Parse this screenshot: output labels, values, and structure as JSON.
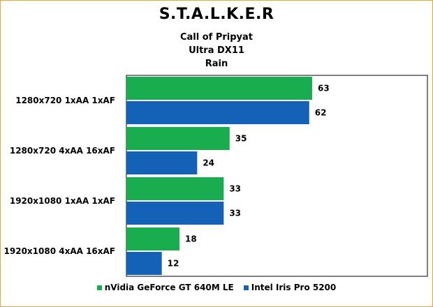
{
  "chart_data": {
    "type": "bar",
    "orientation": "horizontal",
    "title": "S.T.A.L.K.E.R",
    "subtitles": [
      "Call of Pripyat",
      "Ultra DX11",
      "Rain"
    ],
    "categories": [
      "1280x720 1xAA 1xAF",
      "1280x720 4xAA 16xAF",
      "1920x1080 1xAA 1xAF",
      "1920x1080 4xAA 16xAF"
    ],
    "series": [
      {
        "name": "nVidia GeForce GT 640M LE",
        "color": "#1aad4f",
        "values": [
          63,
          35,
          33,
          18
        ]
      },
      {
        "name": "Intel Iris Pro 5200",
        "color": "#1462b8",
        "values": [
          62,
          24,
          33,
          12
        ]
      }
    ],
    "xlim": [
      0,
      70
    ],
    "grid": false,
    "legend_position": "bottom"
  }
}
